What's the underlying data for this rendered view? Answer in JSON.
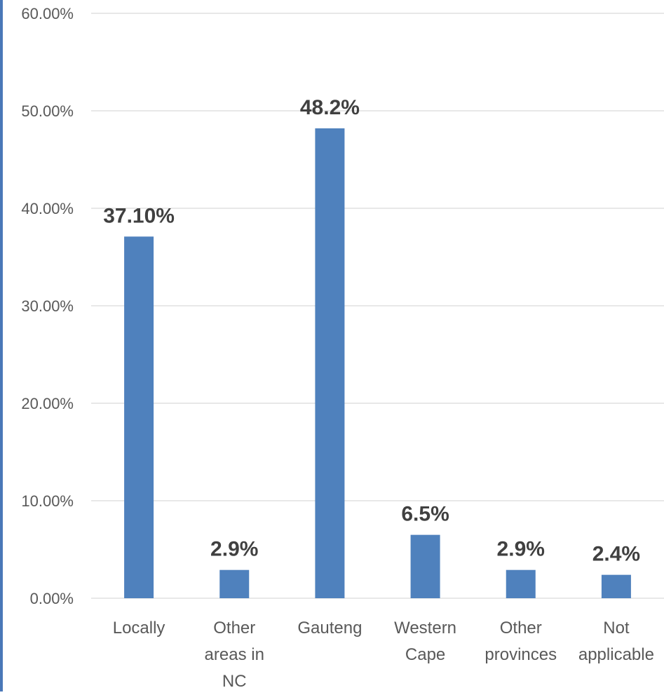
{
  "colors": {
    "bar": "#4f81bd",
    "accent_rule": "#4a78b8"
  },
  "chart_data": {
    "type": "bar",
    "categories": [
      [
        "Locally"
      ],
      [
        "Other",
        "areas in",
        "NC"
      ],
      [
        "Gauteng"
      ],
      [
        "Western",
        "Cape"
      ],
      [
        "Other",
        "provinces"
      ],
      [
        "Not",
        "applicable"
      ]
    ],
    "values": [
      37.1,
      2.9,
      48.2,
      6.5,
      2.9,
      2.4
    ],
    "data_labels": [
      "37.10%",
      "2.9%",
      "48.2%",
      "6.5%",
      "2.9%",
      "2.4%"
    ],
    "ylim": [
      0,
      60
    ],
    "yticks": [
      0,
      10,
      20,
      30,
      40,
      50,
      60
    ],
    "ytick_labels": [
      "0.00%",
      "10.00%",
      "20.00%",
      "30.00%",
      "40.00%",
      "50.00%",
      "60.00%"
    ],
    "grid": true,
    "legend": "none",
    "title": "",
    "xlabel": "",
    "ylabel": ""
  }
}
